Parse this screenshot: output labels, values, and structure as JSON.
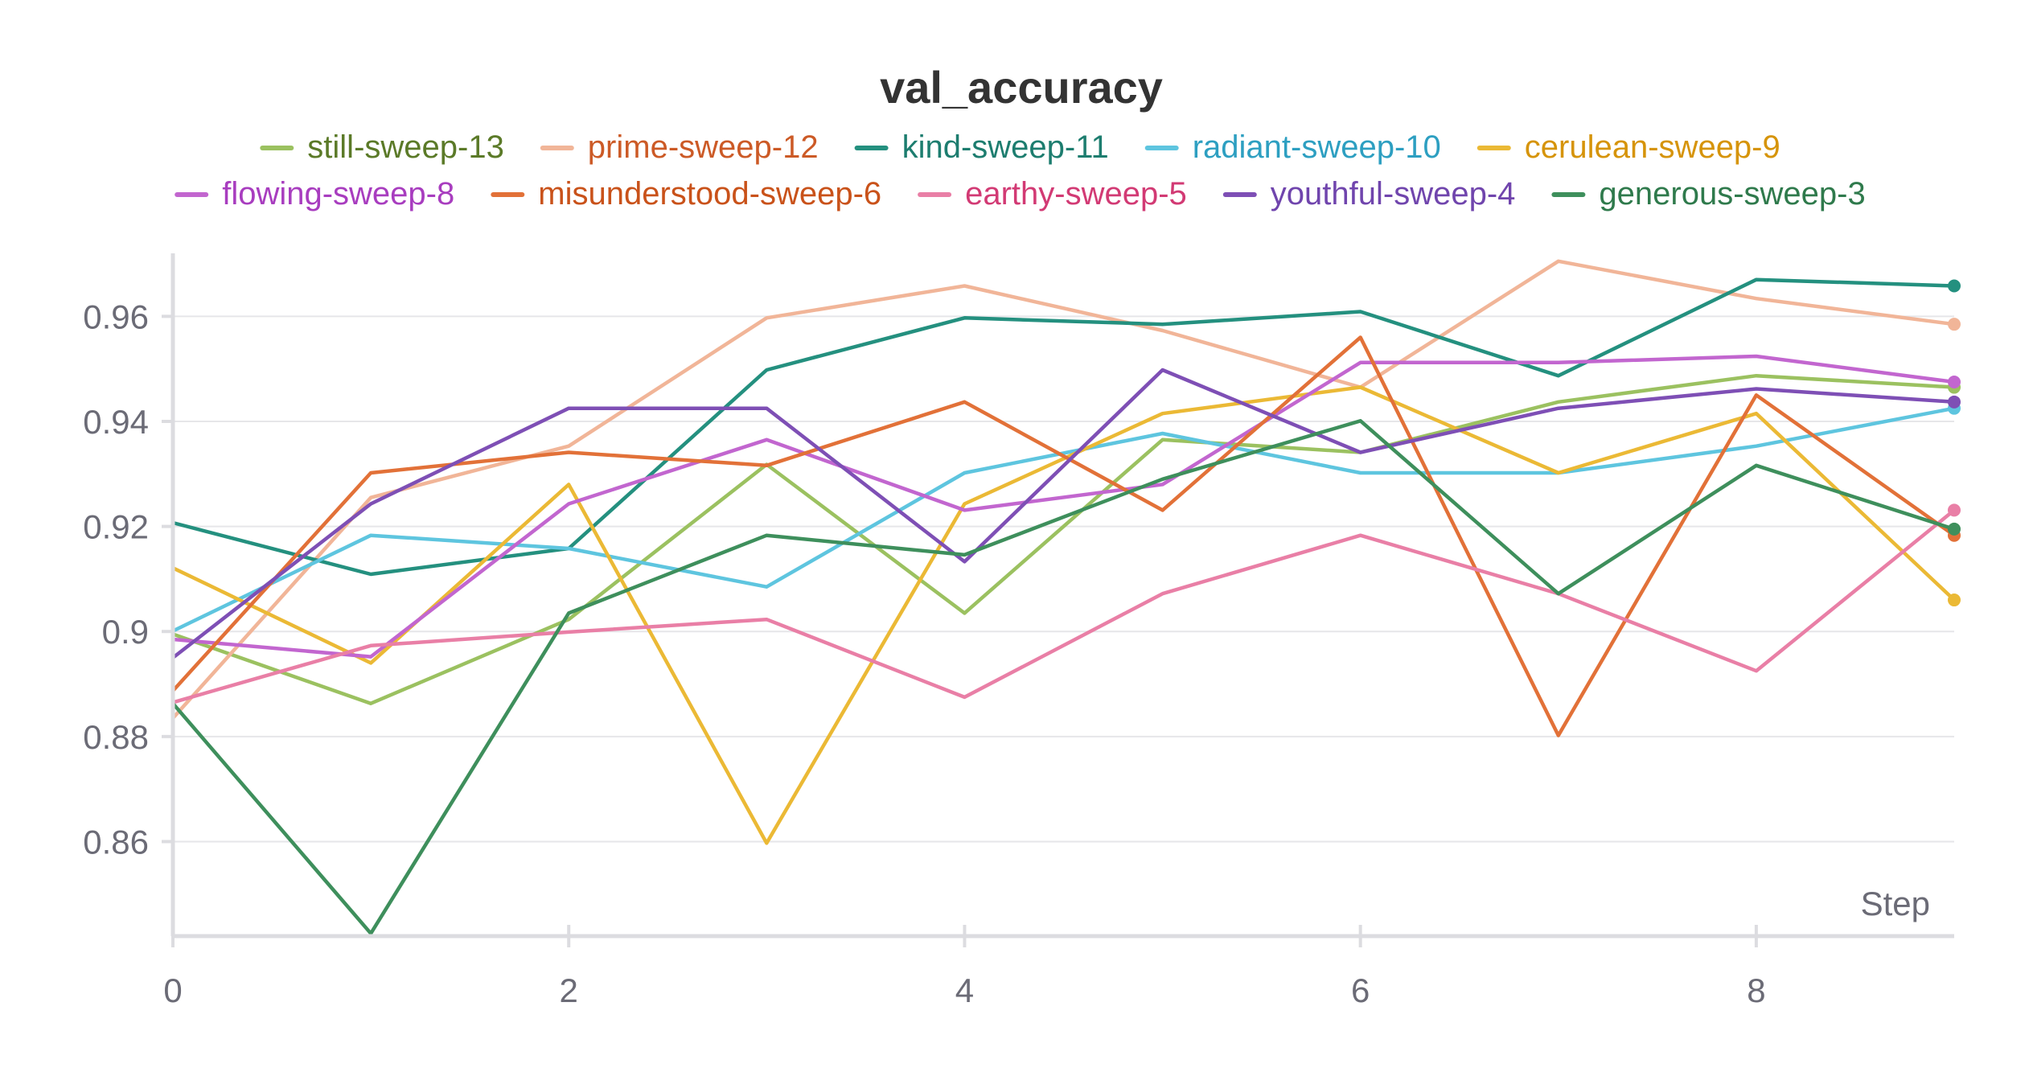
{
  "chart_data": {
    "type": "line",
    "title": "val_accuracy",
    "xlabel": "Step",
    "ylabel": "",
    "x": [
      0,
      1,
      2,
      3,
      4,
      5,
      6,
      7,
      8,
      9
    ],
    "xlim": [
      0,
      9
    ],
    "ylim": [
      0.842,
      0.972
    ],
    "x_ticks": [
      0,
      2,
      4,
      6,
      8
    ],
    "x_tick_labels": [
      "0",
      "2",
      "4",
      "6",
      "8"
    ],
    "y_ticks": [
      0.86,
      0.88,
      0.9,
      0.92,
      0.94,
      0.96
    ],
    "y_tick_labels": [
      "0.86",
      "0.88",
      "0.9",
      "0.92",
      "0.94",
      "0.96"
    ],
    "grid": true,
    "legend_position": "top",
    "series": [
      {
        "name": "still-sweep-13",
        "color": "#9bc160",
        "text_color": "#5b7a28",
        "values": [
          0.8995,
          0.8863,
          0.9023,
          0.9318,
          0.9035,
          0.9365,
          0.9341,
          0.9437,
          0.9487,
          0.9465
        ]
      },
      {
        "name": "prime-sweep-12",
        "color": "#f1b598",
        "text_color": "#cc5a26",
        "values": [
          0.8835,
          0.9255,
          0.9353,
          0.9597,
          0.9658,
          0.9573,
          0.9465,
          0.9705,
          0.9634,
          0.9585
        ]
      },
      {
        "name": "kind-sweep-11",
        "color": "#24907f",
        "text_color": "#1d7d6f",
        "values": [
          0.9207,
          0.9109,
          0.9158,
          0.9498,
          0.9597,
          0.9585,
          0.9609,
          0.9487,
          0.967,
          0.9658
        ]
      },
      {
        "name": "radiant-sweep-10",
        "color": "#5ec5df",
        "text_color": "#2d9fc1",
        "values": [
          0.9001,
          0.9183,
          0.9158,
          0.9085,
          0.9302,
          0.9377,
          0.9302,
          0.9302,
          0.9353,
          0.9425
        ]
      },
      {
        "name": "cerulean-sweep-9",
        "color": "#ebb935",
        "text_color": "#d6940a",
        "values": [
          0.9121,
          0.894,
          0.928,
          0.8597,
          0.9243,
          0.9415,
          0.9465,
          0.9302,
          0.9415,
          0.906
        ]
      },
      {
        "name": "flowing-sweep-8",
        "color": "#c266cf",
        "text_color": "#a83dbf",
        "values": [
          0.8985,
          0.8952,
          0.9243,
          0.9365,
          0.9231,
          0.928,
          0.9512,
          0.9512,
          0.9524,
          0.9475
        ]
      },
      {
        "name": "misunderstood-sweep-6",
        "color": "#e27138",
        "text_color": "#c9521a",
        "values": [
          0.8887,
          0.9302,
          0.9341,
          0.9316,
          0.9437,
          0.9231,
          0.956,
          0.8802,
          0.945,
          0.9183
        ]
      },
      {
        "name": "earthy-sweep-5",
        "color": "#e97fa6",
        "text_color": "#d23a74",
        "values": [
          0.8865,
          0.8973,
          0.8999,
          0.9023,
          0.8875,
          0.9072,
          0.9183,
          0.9072,
          0.8925,
          0.9231
        ]
      },
      {
        "name": "youthful-sweep-4",
        "color": "#7e4fb5",
        "text_color": "#7045ad",
        "values": [
          0.895,
          0.9243,
          0.9425,
          0.9425,
          0.9133,
          0.9498,
          0.9341,
          0.9425,
          0.9462,
          0.9437
        ]
      },
      {
        "name": "generous-sweep-3",
        "color": "#3e8f5c",
        "text_color": "#2f7a4c",
        "values": [
          0.8863,
          0.8425,
          0.9035,
          0.9183,
          0.9146,
          0.929,
          0.9401,
          0.9072,
          0.9316,
          0.9195
        ]
      }
    ]
  }
}
